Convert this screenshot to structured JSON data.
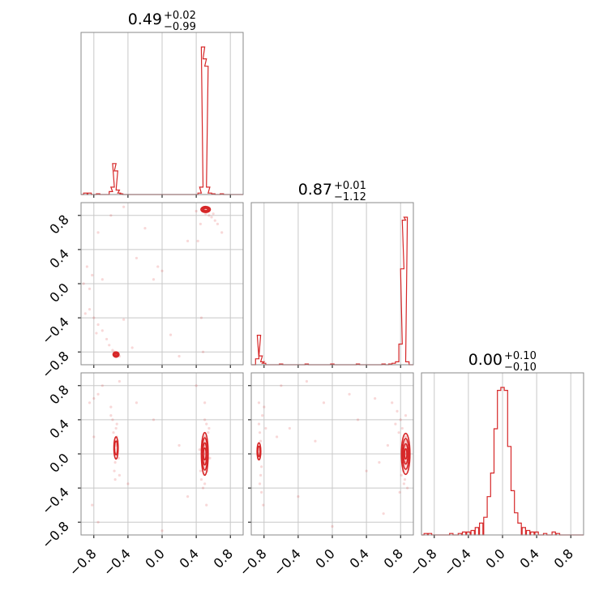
{
  "chart_data": {
    "type": "corner",
    "color": "#d62728",
    "params": [
      {
        "title": {
          "value": "0.49",
          "plus": "+0.02",
          "minus": "−0.99"
        },
        "range": [
          -0.95,
          0.95
        ]
      },
      {
        "title": {
          "value": "0.87",
          "plus": "+0.01",
          "minus": "−1.12"
        },
        "range": [
          -0.95,
          0.95
        ]
      },
      {
        "title": {
          "value": "0.00",
          "plus": "+0.10",
          "minus": "−0.10"
        },
        "range": [
          -0.95,
          0.95
        ]
      }
    ],
    "tick_values": [
      -0.8,
      -0.4,
      0.0,
      0.4,
      0.8
    ],
    "tick_labels": [
      "−0.8",
      "−0.4",
      "0.0",
      "0.4",
      "0.8"
    ],
    "grid": true,
    "histograms": [
      {
        "param": 0,
        "x": [
          -0.9,
          -0.85,
          -0.75,
          -0.6,
          -0.58,
          -0.56,
          -0.54,
          -0.52,
          -0.5,
          -0.48,
          0.44,
          0.46,
          0.48,
          0.5,
          0.52,
          0.54,
          0.56,
          0.6,
          0.7
        ],
        "y": [
          0.01,
          0.01,
          0.005,
          0.02,
          0.05,
          0.21,
          0.16,
          0.03,
          0.01,
          0.005,
          0.01,
          0.05,
          1.0,
          0.92,
          0.87,
          0.05,
          0.01,
          0.005,
          0.005
        ]
      },
      {
        "param": 1,
        "x": [
          -0.88,
          -0.86,
          -0.84,
          -0.82,
          -0.8,
          -0.6,
          -0.3,
          0.0,
          0.3,
          0.6,
          0.68,
          0.72,
          0.76,
          0.8,
          0.82,
          0.84,
          0.86,
          0.88
        ],
        "y": [
          0.04,
          0.2,
          0.06,
          0.02,
          0.01,
          0.005,
          0.005,
          0.005,
          0.005,
          0.005,
          0.005,
          0.01,
          0.02,
          0.14,
          0.65,
          0.98,
          1.0,
          0.02
        ]
      },
      {
        "param": 2,
        "x": [
          -0.9,
          -0.85,
          -0.6,
          -0.5,
          -0.45,
          -0.4,
          -0.35,
          -0.3,
          -0.25,
          -0.2,
          -0.16,
          -0.12,
          -0.08,
          -0.04,
          0.0,
          0.04,
          0.08,
          0.12,
          0.16,
          0.2,
          0.25,
          0.3,
          0.35,
          0.4,
          0.5,
          0.6,
          0.65
        ],
        "y": [
          0.01,
          0.01,
          0.01,
          0.01,
          0.02,
          0.02,
          0.03,
          0.05,
          0.08,
          0.12,
          0.26,
          0.42,
          0.72,
          0.98,
          1.0,
          0.98,
          0.6,
          0.3,
          0.15,
          0.08,
          0.05,
          0.03,
          0.02,
          0.02,
          0.01,
          0.02,
          0.01
        ]
      }
    ],
    "scatter_panels": [
      {
        "x_param": 0,
        "y_param": 1,
        "points": [
          [
            0.5,
            0.88
          ],
          [
            0.49,
            0.86
          ],
          [
            0.52,
            0.85
          ],
          [
            0.47,
            0.87
          ],
          [
            0.54,
            0.86
          ],
          [
            0.51,
            0.82
          ],
          [
            0.55,
            0.8
          ],
          [
            0.58,
            0.78
          ],
          [
            0.62,
            0.74
          ],
          [
            0.6,
            0.82
          ],
          [
            0.45,
            0.7
          ],
          [
            0.42,
            0.5
          ],
          [
            0.46,
            -0.4
          ],
          [
            0.48,
            -0.8
          ],
          [
            0.4,
            0.85
          ],
          [
            -0.55,
            -0.82
          ],
          [
            -0.53,
            -0.84
          ],
          [
            -0.56,
            -0.8
          ],
          [
            -0.52,
            -0.83
          ],
          [
            -0.5,
            -0.85
          ],
          [
            -0.58,
            -0.78
          ],
          [
            -0.54,
            -0.86
          ],
          [
            -0.62,
            -0.72
          ],
          [
            -0.7,
            -0.55
          ],
          [
            -0.75,
            -0.48
          ],
          [
            -0.8,
            -0.4
          ],
          [
            -0.85,
            -0.3
          ],
          [
            -0.9,
            -0.35
          ],
          [
            -0.65,
            -0.65
          ],
          [
            -0.77,
            -0.58
          ],
          [
            -0.85,
            -0.06
          ],
          [
            -0.82,
            0.1
          ],
          [
            -0.88,
            0.2
          ],
          [
            -0.75,
            0.6
          ],
          [
            -0.6,
            0.8
          ],
          [
            -0.45,
            -0.42
          ],
          [
            -0.3,
            0.3
          ],
          [
            -0.05,
            0.2
          ],
          [
            0.0,
            0.15
          ],
          [
            -0.1,
            0.05
          ],
          [
            0.1,
            -0.6
          ],
          [
            0.3,
            0.5
          ],
          [
            -0.2,
            0.65
          ],
          [
            -0.35,
            -0.75
          ],
          [
            0.2,
            -0.85
          ],
          [
            0.7,
            0.6
          ],
          [
            -0.92,
            0.0
          ],
          [
            -0.7,
            0.05
          ],
          [
            0.65,
            0.7
          ],
          [
            -0.45,
            0.9
          ]
        ]
      },
      {
        "x_param": 0,
        "y_param": 2,
        "points": [
          [
            0.5,
            0.0
          ],
          [
            0.49,
            0.1
          ],
          [
            0.51,
            -0.1
          ],
          [
            0.52,
            0.05
          ],
          [
            0.48,
            -0.05
          ],
          [
            0.5,
            0.2
          ],
          [
            0.53,
            -0.2
          ],
          [
            0.47,
            0.15
          ],
          [
            0.55,
            0.3
          ],
          [
            0.46,
            -0.3
          ],
          [
            0.52,
            0.35
          ],
          [
            0.5,
            -0.35
          ],
          [
            0.44,
            0.05
          ],
          [
            0.56,
            -0.05
          ],
          [
            0.5,
            0.4
          ],
          [
            0.48,
            -0.4
          ],
          [
            0.54,
            0.25
          ],
          [
            0.45,
            -0.2
          ],
          [
            0.5,
            0.6
          ],
          [
            0.52,
            -0.6
          ],
          [
            -0.54,
            0.1
          ],
          [
            -0.55,
            0.0
          ],
          [
            -0.53,
            0.2
          ],
          [
            -0.56,
            0.05
          ],
          [
            -0.52,
            0.15
          ],
          [
            -0.55,
            -0.1
          ],
          [
            -0.57,
            0.25
          ],
          [
            -0.54,
            0.3
          ],
          [
            -0.51,
            -0.05
          ],
          [
            -0.56,
            -0.2
          ],
          [
            -0.53,
            0.35
          ],
          [
            -0.58,
            0.4
          ],
          [
            -0.5,
            -0.25
          ],
          [
            -0.6,
            0.45
          ],
          [
            -0.55,
            -0.3
          ],
          [
            -0.6,
            0.55
          ],
          [
            -0.85,
            0.6
          ],
          [
            -0.8,
            0.65
          ],
          [
            -0.75,
            0.7
          ],
          [
            -0.7,
            0.8
          ],
          [
            -0.82,
            -0.6
          ],
          [
            -0.75,
            -0.8
          ],
          [
            -0.5,
            0.85
          ],
          [
            -0.4,
            -0.35
          ],
          [
            -0.3,
            0.6
          ],
          [
            0.0,
            -0.9
          ],
          [
            0.3,
            -0.5
          ],
          [
            0.4,
            0.8
          ],
          [
            -0.1,
            0.4
          ],
          [
            0.2,
            0.1
          ],
          [
            -0.8,
            0.2
          ]
        ]
      },
      {
        "x_param": 1,
        "y_param": 2,
        "points": [
          [
            0.86,
            0.0
          ],
          [
            0.87,
            0.1
          ],
          [
            0.85,
            -0.1
          ],
          [
            0.88,
            0.05
          ],
          [
            0.84,
            -0.05
          ],
          [
            0.86,
            0.2
          ],
          [
            0.83,
            -0.2
          ],
          [
            0.87,
            0.15
          ],
          [
            0.82,
            0.3
          ],
          [
            0.85,
            -0.3
          ],
          [
            0.8,
            0.4
          ],
          [
            0.84,
            -0.35
          ],
          [
            0.78,
            0.25
          ],
          [
            0.81,
            -0.25
          ],
          [
            0.76,
            0.5
          ],
          [
            0.79,
            -0.45
          ],
          [
            0.7,
            0.6
          ],
          [
            0.74,
            0.35
          ],
          [
            0.88,
            -0.4
          ],
          [
            0.86,
            0.45
          ],
          [
            -0.85,
            0.05
          ],
          [
            -0.86,
            0.0
          ],
          [
            -0.84,
            0.15
          ],
          [
            -0.87,
            -0.05
          ],
          [
            -0.85,
            0.25
          ],
          [
            -0.83,
            -0.15
          ],
          [
            -0.86,
            0.35
          ],
          [
            -0.84,
            -0.25
          ],
          [
            -0.82,
            0.45
          ],
          [
            -0.85,
            -0.35
          ],
          [
            -0.8,
            0.55
          ],
          [
            -0.83,
            -0.45
          ],
          [
            -0.78,
            0.3
          ],
          [
            -0.81,
            -0.6
          ],
          [
            -0.86,
            0.6
          ],
          [
            -0.6,
            0.8
          ],
          [
            -0.3,
            0.85
          ],
          [
            -0.1,
            0.6
          ],
          [
            0.2,
            0.7
          ],
          [
            0.5,
            0.65
          ],
          [
            0.55,
            -0.1
          ],
          [
            0.4,
            -0.2
          ],
          [
            -0.5,
            0.3
          ],
          [
            -0.65,
            0.2
          ],
          [
            0.0,
            -0.85
          ],
          [
            0.6,
            -0.7
          ],
          [
            0.3,
            0.4
          ],
          [
            -0.4,
            -0.5
          ],
          [
            0.65,
            0.1
          ],
          [
            -0.2,
            0.15
          ]
        ]
      }
    ],
    "contour_panels": [
      {
        "x_param": 0,
        "y_param": 1,
        "blobs": [
          {
            "cx": 0.51,
            "cy": 0.87,
            "rx": [
              0.055,
              0.04,
              0.025
            ],
            "ry": [
              0.035,
              0.025,
              0.014
            ]
          },
          {
            "cx": -0.54,
            "cy": -0.83,
            "rx": [
              0.035,
              0.025,
              0.012
            ],
            "ry": [
              0.03,
              0.02,
              0.01
            ]
          }
        ]
      },
      {
        "x_param": 0,
        "y_param": 2,
        "blobs": [
          {
            "cx": 0.5,
            "cy": 0.0,
            "rx": [
              0.04,
              0.032,
              0.024,
              0.016
            ],
            "ry": [
              0.25,
              0.19,
              0.13,
              0.07
            ]
          },
          {
            "cx": -0.54,
            "cy": 0.07,
            "rx": [
              0.025,
              0.018
            ],
            "ry": [
              0.13,
              0.08
            ]
          }
        ]
      },
      {
        "x_param": 1,
        "y_param": 2,
        "blobs": [
          {
            "cx": 0.86,
            "cy": 0.0,
            "rx": [
              0.05,
              0.038,
              0.026,
              0.014
            ],
            "ry": [
              0.24,
              0.18,
              0.12,
              0.06
            ]
          },
          {
            "cx": -0.86,
            "cy": 0.03,
            "rx": [
              0.022,
              0.014
            ],
            "ry": [
              0.1,
              0.06
            ]
          }
        ]
      }
    ]
  }
}
